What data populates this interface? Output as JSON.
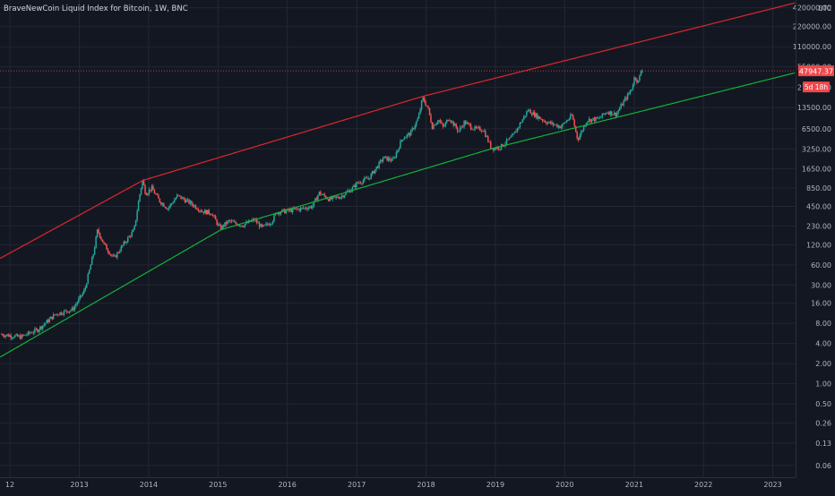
{
  "header": {
    "title": "BraveNewCoin Liquid Index for Bitcoin, 1W, BNC"
  },
  "colors": {
    "background": "#131722",
    "grid": "#232734",
    "text": "#b2b5be",
    "up": "#26a69a",
    "down": "#ef5350",
    "upper_band": "#e0262b",
    "lower_band": "#13b23a",
    "price_tag": "#f0484b"
  },
  "chart_data": {
    "type": "candlestick",
    "title": "BraveNewCoin Liquid Index for Bitcoin, 1W, BNC",
    "currency": "BTC",
    "y_scale": "log",
    "ylim": [
      0.04,
      550000
    ],
    "xlim": [
      "2011-11-10",
      "2023-05-01"
    ],
    "y_ticks": [
      "420000.00",
      "220000.00",
      "110000.00",
      "55000.00",
      "27000.00",
      "13500.00",
      "6500.00",
      "3250.00",
      "1650.00",
      "850.00",
      "450.00",
      "230.00",
      "120.00",
      "60.00",
      "30.00",
      "16.00",
      "8.00",
      "4.00",
      "2.00",
      "1.00",
      "0.50",
      "0.26",
      "0.13",
      "0.06"
    ],
    "x_ticks": [
      "12",
      "2013",
      "2014",
      "2015",
      "2016",
      "2017",
      "2018",
      "2019",
      "2020",
      "2021",
      "2022",
      "2023"
    ],
    "last_price": "47947.37",
    "countdown": "5d 18h",
    "grid": true,
    "price_anchors": [
      {
        "date": "2011-11-15",
        "price": 5.5
      },
      {
        "date": "2012-03-01",
        "price": 5.0
      },
      {
        "date": "2012-06-01",
        "price": 6.5
      },
      {
        "date": "2012-09-01",
        "price": 11
      },
      {
        "date": "2012-12-01",
        "price": 13
      },
      {
        "date": "2013-02-01",
        "price": 25
      },
      {
        "date": "2013-03-20",
        "price": 90
      },
      {
        "date": "2013-04-10",
        "price": 200
      },
      {
        "date": "2013-05-15",
        "price": 120
      },
      {
        "date": "2013-07-05",
        "price": 75
      },
      {
        "date": "2013-09-01",
        "price": 130
      },
      {
        "date": "2013-10-20",
        "price": 200
      },
      {
        "date": "2013-11-15",
        "price": 600
      },
      {
        "date": "2013-12-03",
        "price": 1100
      },
      {
        "date": "2013-12-20",
        "price": 700
      },
      {
        "date": "2014-01-20",
        "price": 850
      },
      {
        "date": "2014-03-01",
        "price": 550
      },
      {
        "date": "2014-04-15",
        "price": 420
      },
      {
        "date": "2014-06-05",
        "price": 650
      },
      {
        "date": "2014-08-15",
        "price": 500
      },
      {
        "date": "2014-10-15",
        "price": 380
      },
      {
        "date": "2014-12-01",
        "price": 360
      },
      {
        "date": "2015-01-15",
        "price": 210
      },
      {
        "date": "2015-03-01",
        "price": 270
      },
      {
        "date": "2015-05-15",
        "price": 235
      },
      {
        "date": "2015-07-15",
        "price": 285
      },
      {
        "date": "2015-08-25",
        "price": 215
      },
      {
        "date": "2015-10-15",
        "price": 270
      },
      {
        "date": "2015-11-10",
        "price": 370
      },
      {
        "date": "2016-01-15",
        "price": 390
      },
      {
        "date": "2016-03-15",
        "price": 415
      },
      {
        "date": "2016-05-15",
        "price": 450
      },
      {
        "date": "2016-06-20",
        "price": 720
      },
      {
        "date": "2016-08-15",
        "price": 570
      },
      {
        "date": "2016-10-15",
        "price": 640
      },
      {
        "date": "2016-12-15",
        "price": 850
      },
      {
        "date": "2017-01-05",
        "price": 1000
      },
      {
        "date": "2017-03-10",
        "price": 1200
      },
      {
        "date": "2017-05-25",
        "price": 2400
      },
      {
        "date": "2017-07-15",
        "price": 2200
      },
      {
        "date": "2017-09-01",
        "price": 4700
      },
      {
        "date": "2017-10-15",
        "price": 5600
      },
      {
        "date": "2017-11-25",
        "price": 9500
      },
      {
        "date": "2017-12-17",
        "price": 19000
      },
      {
        "date": "2018-01-15",
        "price": 13000
      },
      {
        "date": "2018-02-06",
        "price": 7000
      },
      {
        "date": "2018-03-10",
        "price": 9000
      },
      {
        "date": "2018-04-05",
        "price": 6800
      },
      {
        "date": "2018-05-05",
        "price": 9600
      },
      {
        "date": "2018-06-25",
        "price": 6000
      },
      {
        "date": "2018-07-25",
        "price": 8200
      },
      {
        "date": "2018-09-15",
        "price": 6500
      },
      {
        "date": "2018-11-01",
        "price": 6400
      },
      {
        "date": "2018-12-15",
        "price": 3300
      },
      {
        "date": "2019-02-01",
        "price": 3500
      },
      {
        "date": "2019-04-05",
        "price": 5000
      },
      {
        "date": "2019-06-26",
        "price": 12500
      },
      {
        "date": "2019-08-01",
        "price": 10500
      },
      {
        "date": "2019-10-01",
        "price": 8200
      },
      {
        "date": "2019-12-15",
        "price": 7000
      },
      {
        "date": "2020-02-12",
        "price": 10300
      },
      {
        "date": "2020-03-13",
        "price": 4500
      },
      {
        "date": "2020-05-01",
        "price": 8800
      },
      {
        "date": "2020-07-01",
        "price": 9200
      },
      {
        "date": "2020-08-15",
        "price": 11800
      },
      {
        "date": "2020-10-01",
        "price": 10700
      },
      {
        "date": "2020-11-15",
        "price": 17500
      },
      {
        "date": "2020-12-20",
        "price": 25000
      },
      {
        "date": "2021-01-08",
        "price": 40000
      },
      {
        "date": "2021-01-25",
        "price": 32000
      },
      {
        "date": "2021-02-10",
        "price": 47947
      }
    ],
    "series": [
      {
        "type": "line",
        "points": [
          {
            "date": "2011-11-10",
            "value": 75
          },
          {
            "date": "2013-12-01",
            "value": 1100
          },
          {
            "date": "2017-12-17",
            "value": 20000
          },
          {
            "date": "2023-05-01",
            "value": 500000
          }
        ]
      },
      {
        "type": "line",
        "points": [
          {
            "date": "2011-11-10",
            "value": 2.5
          },
          {
            "date": "2015-01-15",
            "value": 200
          },
          {
            "date": "2018-12-15",
            "value": 3300
          },
          {
            "date": "2023-05-01",
            "value": 45000
          }
        ]
      }
    ]
  }
}
